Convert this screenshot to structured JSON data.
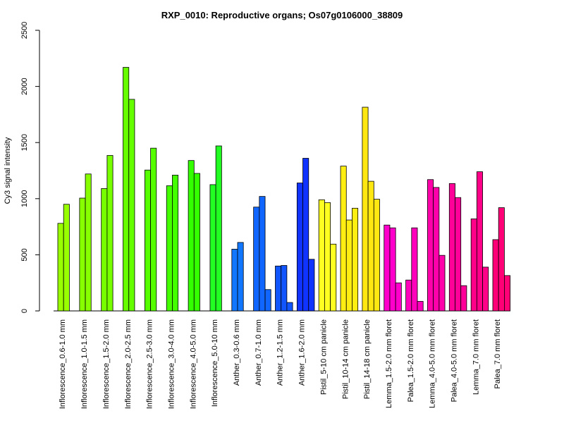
{
  "chart_data": {
    "type": "bar",
    "title": "RXP_0010: Reproductive organs; Os07g0106000_38809",
    "xlabel": "",
    "ylabel": "Cy3 signal intensity",
    "ylim": [
      0,
      2500
    ],
    "yticks": [
      0,
      500,
      1000,
      1500,
      2000,
      2500
    ],
    "grid": false,
    "legend": "none",
    "groups": [
      {
        "label": "Inflorescence_0.6-1.0 mm",
        "color": "#99ff00",
        "values": [
          780,
          950
        ]
      },
      {
        "label": "Inflorescence_1.0-1.5 mm",
        "color": "#88ff00",
        "values": [
          1005,
          1220
        ]
      },
      {
        "label": "Inflorescence_1.5-2.0 mm",
        "color": "#77ff00",
        "values": [
          1090,
          1385
        ]
      },
      {
        "label": "Inflorescence_2.0-2.5 mm",
        "color": "#66ff00",
        "values": [
          2170,
          1885
        ]
      },
      {
        "label": "Inflorescence_2.5-3.0 mm",
        "color": "#55ff00",
        "values": [
          1255,
          1450
        ]
      },
      {
        "label": "Inflorescence_3.0-4.0 mm",
        "color": "#44ff00",
        "values": [
          1115,
          1210
        ]
      },
      {
        "label": "Inflorescence_4.0-5.0 mm",
        "color": "#33ff00",
        "values": [
          1340,
          1225
        ]
      },
      {
        "label": "Inflorescence_5.0-10 mm",
        "color": "#22ff22",
        "values": [
          1125,
          1470
        ]
      },
      {
        "label": "Anther_0.3-0.6 mm",
        "color": "#1177ff",
        "values": [
          550,
          610
        ]
      },
      {
        "label": "Anther_0.7-1.0 mm",
        "color": "#1166ff",
        "values": [
          925,
          1020,
          190
        ]
      },
      {
        "label": "Anther_1.2-1.5 mm",
        "color": "#1155ff",
        "values": [
          400,
          405,
          75
        ]
      },
      {
        "label": "Anther_1.6-2.0 mm",
        "color": "#1133ff",
        "values": [
          1140,
          1360,
          460
        ]
      },
      {
        "label": "Pistil_5-10 cm panicle",
        "color": "#ffff22",
        "values": [
          990,
          965,
          595
        ]
      },
      {
        "label": "Pistil_10-14 cm panicle",
        "color": "#ffee11",
        "values": [
          1290,
          810,
          915
        ]
      },
      {
        "label": "Pistil_14-18 cm panicle",
        "color": "#ffe811",
        "values": [
          1815,
          1155,
          995
        ]
      },
      {
        "label": "Lemma_1.5-2.0 mm floret",
        "color": "#ff00cc",
        "values": [
          765,
          740,
          250
        ]
      },
      {
        "label": "Palea_1.5-2.0 mm floret",
        "color": "#ff00bb",
        "values": [
          275,
          740,
          85
        ]
      },
      {
        "label": "Lemma_4.0-5.0 mm floret",
        "color": "#ff00aa",
        "values": [
          1170,
          1100,
          495
        ]
      },
      {
        "label": "Palea_4.0-5.0 mm floret",
        "color": "#ff0099",
        "values": [
          1135,
          1010,
          225
        ]
      },
      {
        "label": "Lemma_7.0 mm floret",
        "color": "#ff0088",
        "values": [
          820,
          1240,
          390
        ]
      },
      {
        "label": "Palea_7.0 mm floret",
        "color": "#ff0077",
        "values": [
          635,
          920,
          315
        ]
      }
    ]
  }
}
